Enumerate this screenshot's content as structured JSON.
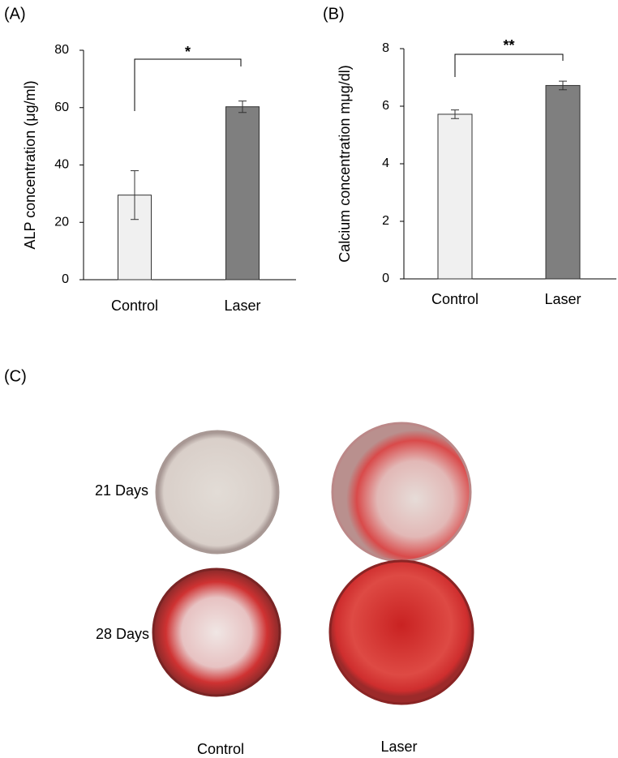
{
  "chart_data": [
    {
      "type": "bar",
      "label": "(A)",
      "ylabel": "ALP concentration (μg/ml)",
      "categories": [
        "Control",
        "Laser"
      ],
      "values": [
        29.5,
        60.3
      ],
      "errors": [
        8.5,
        2
      ],
      "colors": [
        "#f0f0f0",
        "#7f7f7f"
      ],
      "ylim": [
        0,
        80
      ],
      "yticks": [
        0,
        20,
        40,
        60,
        80
      ],
      "annotation": "*"
    },
    {
      "type": "bar",
      "label": "(B)",
      "ylabel": "Calcium  concentration mμg/dl)",
      "categories": [
        "Control",
        "Laser"
      ],
      "values": [
        5.72,
        6.72
      ],
      "errors": [
        0.15,
        0.15
      ],
      "colors": [
        "#f0f0f0",
        "#7f7f7f"
      ],
      "ylim": [
        0,
        8
      ],
      "yticks": [
        0,
        2,
        4,
        6,
        8
      ],
      "annotation": "**"
    }
  ],
  "panel_c": {
    "label": "(C)",
    "rows": [
      "21 Days",
      "28 Days"
    ],
    "columns": [
      "Control",
      "Laser"
    ]
  }
}
